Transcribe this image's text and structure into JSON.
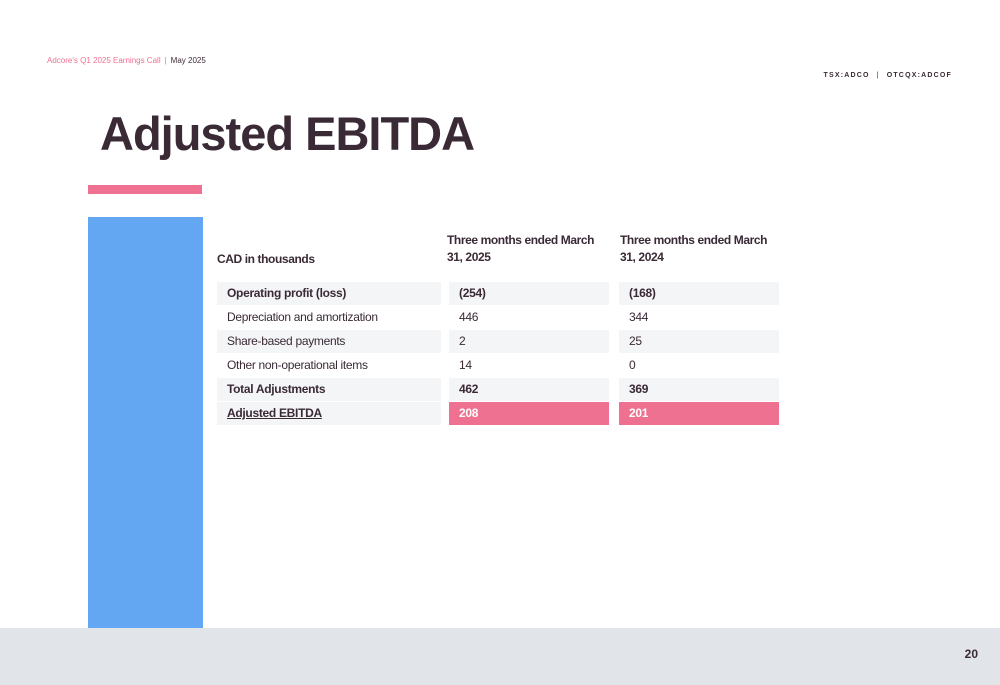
{
  "header": {
    "call_title": "Adcore's Q1 2025 Earnings Call",
    "separator": "|",
    "date": "May 2025",
    "ticker_tsx": "TSX:ADCO",
    "ticker_separator": "|",
    "ticker_otc": "OTCQX:ADCOF"
  },
  "slide": {
    "title": "Adjusted EBITDA",
    "page_number": "20"
  },
  "table": {
    "unit_label": "CAD in thousands",
    "columns": [
      "Three months ended March 31, 2025",
      "Three months ended March 31, 2024"
    ],
    "rows": [
      {
        "label": "Operating profit (loss)",
        "v2025": "(254)",
        "v2024": "(168)"
      },
      {
        "label": "Depreciation and amortization",
        "v2025": "446",
        "v2024": "344"
      },
      {
        "label": "Share-based payments",
        "v2025": "2",
        "v2024": "25"
      },
      {
        "label": "Other non-operational items",
        "v2025": "14",
        "v2024": "0"
      },
      {
        "label": "Total Adjustments",
        "v2025": "462",
        "v2024": "369"
      },
      {
        "label": "Adjusted EBITDA",
        "v2025": "208",
        "v2024": "201"
      }
    ]
  },
  "colors": {
    "accent_pink": "#ef7191",
    "side_blue": "#63a6f2",
    "title_dark": "#3a2a35",
    "footer_gray": "#e1e4e8",
    "row_gray": "#f4f5f7"
  }
}
